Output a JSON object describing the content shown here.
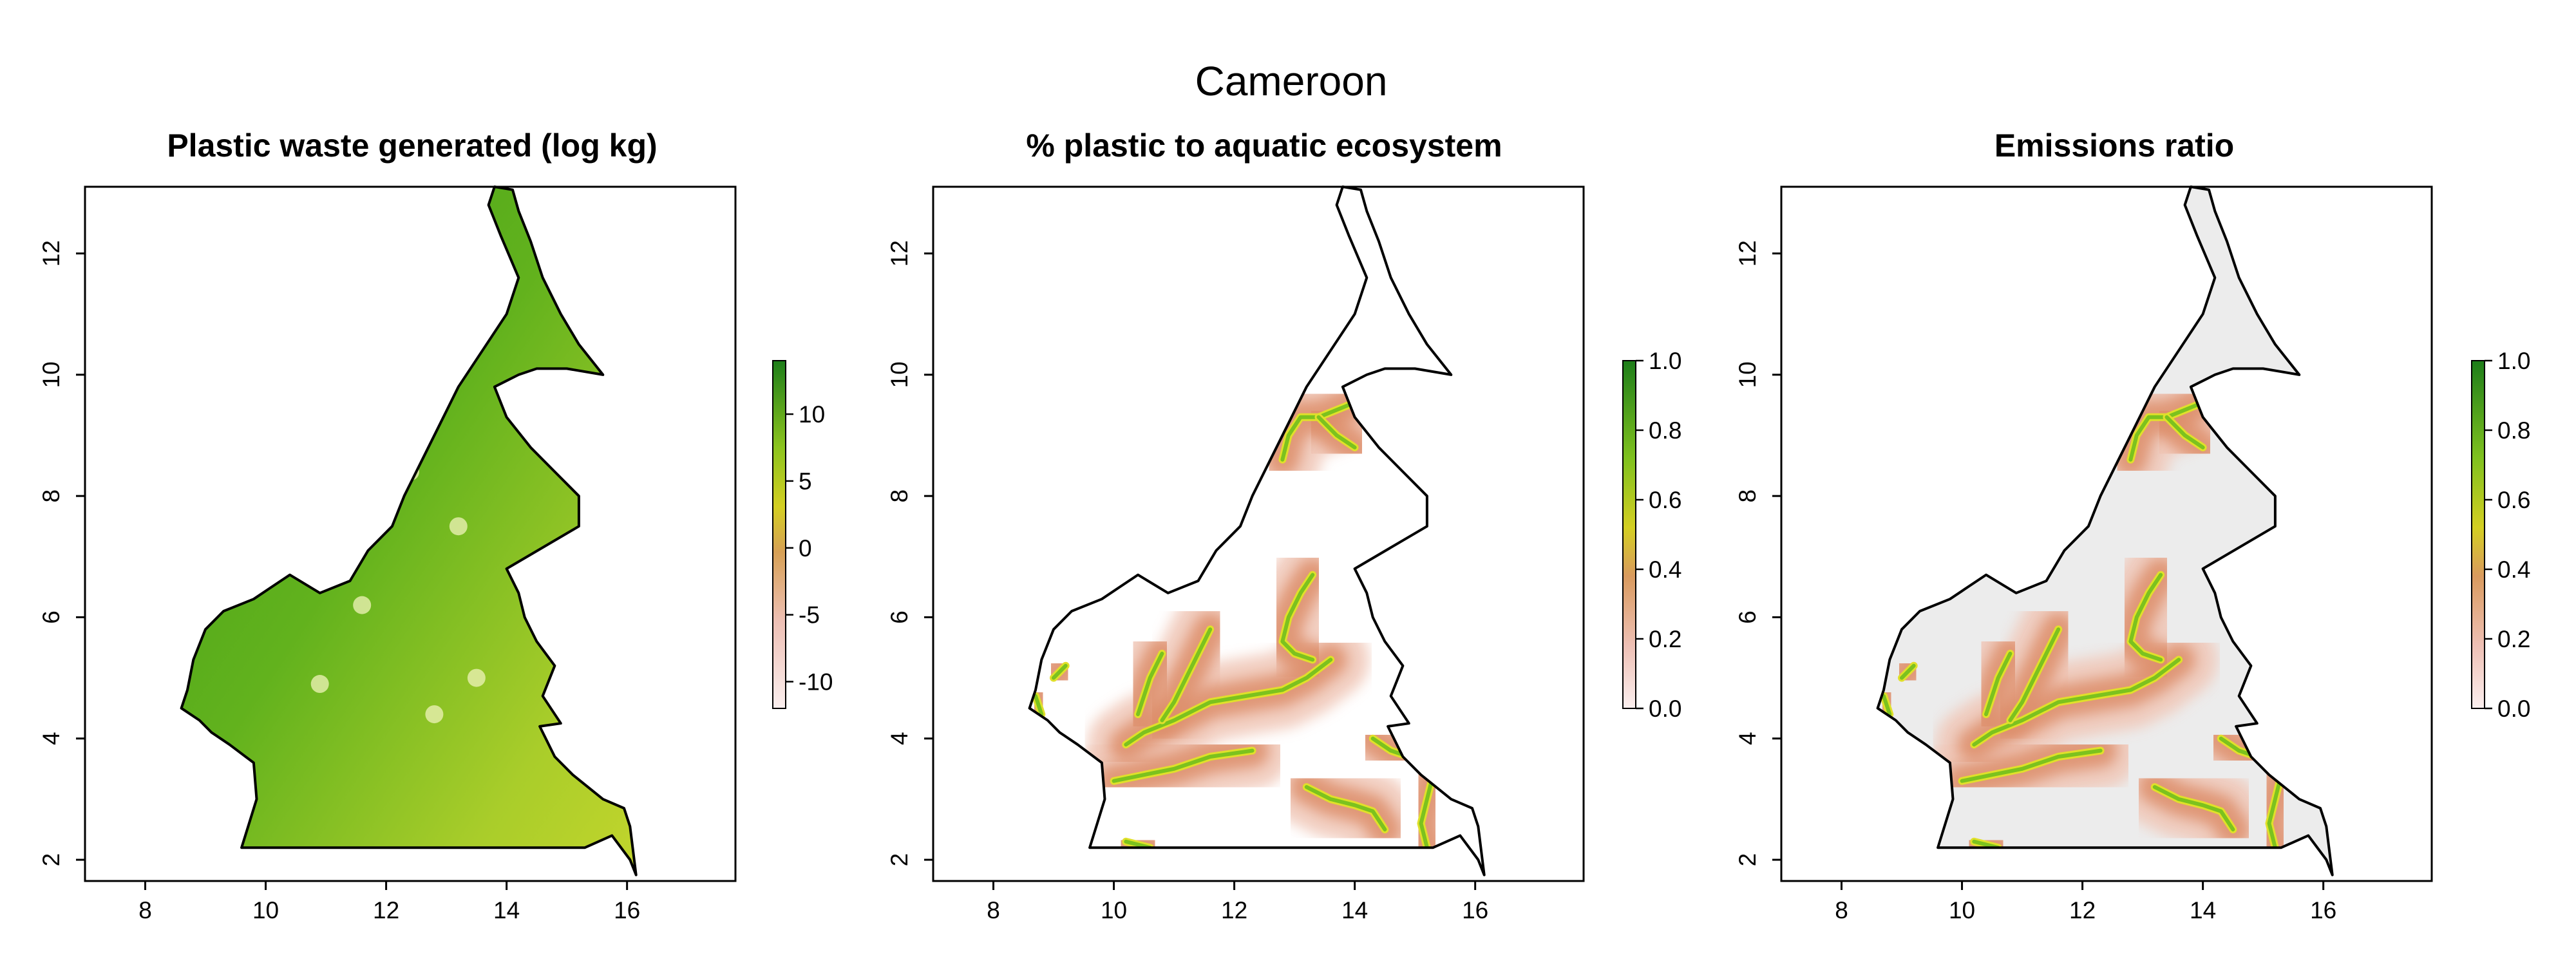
{
  "figure": {
    "title": "Cameroon",
    "colors": {
      "land_green_dark": "#3f9e1a",
      "land_green": "#62b21d",
      "land_yellowgreen": "#a9cd2a",
      "buffer_orange": "#dd8e6a",
      "buffer_pink": "#f0c7b8",
      "river_green": "#7cc21e",
      "river_yellow": "#e0e02a",
      "background_grey": "#ececec",
      "border": "#000000"
    }
  },
  "panels": [
    {
      "title": "Plastic waste generated (log kg)",
      "x_ticks": [
        "8",
        "10",
        "12",
        "14",
        "16"
      ],
      "y_ticks": [
        "2",
        "4",
        "6",
        "8",
        "10",
        "12"
      ],
      "legend_ticks": [
        "10",
        "5",
        "0",
        "-5",
        "-10"
      ],
      "legend_range": [
        -12,
        14
      ]
    },
    {
      "title": "% plastic to aquatic ecosystem",
      "x_ticks": [
        "8",
        "10",
        "12",
        "14",
        "16"
      ],
      "y_ticks": [
        "2",
        "4",
        "6",
        "8",
        "10",
        "12"
      ],
      "legend_ticks": [
        "1.0",
        "0.8",
        "0.6",
        "0.4",
        "0.2",
        "0.0"
      ],
      "legend_range": [
        0,
        1
      ]
    },
    {
      "title": "Emissions ratio",
      "x_ticks": [
        "8",
        "10",
        "12",
        "14",
        "16"
      ],
      "y_ticks": [
        "2",
        "4",
        "6",
        "8",
        "10",
        "12"
      ],
      "legend_ticks": [
        "1.0",
        "0.8",
        "0.6",
        "0.4",
        "0.2",
        "0.0"
      ],
      "legend_range": [
        0,
        1
      ]
    }
  ],
  "map_extent": {
    "lon_range": [
      7,
      17.8
    ],
    "lat_range": [
      1.65,
      13.1
    ]
  },
  "country_outline": [
    [
      9.6,
      2.2
    ],
    [
      11.3,
      2.2
    ],
    [
      13.0,
      2.2
    ],
    [
      14.9,
      2.2
    ],
    [
      15.3,
      2.2
    ],
    [
      15.75,
      2.4
    ],
    [
      16.05,
      2.0
    ],
    [
      16.15,
      1.75
    ],
    [
      16.05,
      2.55
    ],
    [
      15.95,
      2.85
    ],
    [
      15.6,
      3.0
    ],
    [
      15.1,
      3.4
    ],
    [
      14.8,
      3.7
    ],
    [
      14.55,
      4.2
    ],
    [
      14.9,
      4.25
    ],
    [
      14.6,
      4.7
    ],
    [
      14.8,
      5.2
    ],
    [
      14.5,
      5.6
    ],
    [
      14.3,
      6.0
    ],
    [
      14.2,
      6.4
    ],
    [
      14.0,
      6.8
    ],
    [
      15.2,
      7.5
    ],
    [
      15.2,
      8.0
    ],
    [
      14.8,
      8.4
    ],
    [
      14.4,
      8.8
    ],
    [
      14.0,
      9.3
    ],
    [
      13.8,
      9.8
    ],
    [
      14.2,
      10.0
    ],
    [
      14.5,
      10.1
    ],
    [
      15.0,
      10.1
    ],
    [
      15.6,
      10.0
    ],
    [
      15.2,
      10.5
    ],
    [
      14.9,
      11.0
    ],
    [
      14.6,
      11.6
    ],
    [
      14.4,
      12.2
    ],
    [
      14.2,
      12.7
    ],
    [
      14.1,
      13.05
    ],
    [
      13.8,
      13.1
    ],
    [
      13.7,
      12.8
    ],
    [
      13.9,
      12.3
    ],
    [
      14.2,
      11.6
    ],
    [
      14.0,
      11.0
    ],
    [
      13.6,
      10.4
    ],
    [
      13.2,
      9.8
    ],
    [
      12.9,
      9.2
    ],
    [
      12.6,
      8.6
    ],
    [
      12.3,
      8.0
    ],
    [
      12.1,
      7.5
    ],
    [
      11.7,
      7.1
    ],
    [
      11.4,
      6.6
    ],
    [
      10.9,
      6.4
    ],
    [
      10.4,
      6.7
    ],
    [
      10.1,
      6.5
    ],
    [
      9.8,
      6.3
    ],
    [
      9.3,
      6.1
    ],
    [
      9.0,
      5.8
    ],
    [
      8.8,
      5.3
    ],
    [
      8.7,
      4.8
    ],
    [
      8.6,
      4.5
    ],
    [
      8.9,
      4.3
    ],
    [
      9.1,
      4.1
    ],
    [
      9.4,
      3.9
    ],
    [
      9.8,
      3.6
    ],
    [
      9.85,
      3.0
    ],
    [
      9.6,
      2.2
    ]
  ],
  "rivers": [
    [
      [
        13.9,
        9.5
      ],
      [
        13.4,
        9.3
      ],
      [
        13.1,
        9.3
      ],
      [
        12.9,
        9.0
      ],
      [
        12.8,
        8.6
      ]
    ],
    [
      [
        13.4,
        9.3
      ],
      [
        13.7,
        9.0
      ],
      [
        14.0,
        8.8
      ]
    ],
    [
      [
        13.3,
        6.7
      ],
      [
        13.1,
        6.4
      ],
      [
        12.9,
        6.0
      ],
      [
        12.8,
        5.6
      ],
      [
        13.0,
        5.4
      ],
      [
        13.3,
        5.3
      ]
    ],
    [
      [
        13.6,
        5.3
      ],
      [
        13.2,
        5.0
      ],
      [
        12.8,
        4.8
      ],
      [
        12.2,
        4.7
      ],
      [
        11.6,
        4.6
      ],
      [
        11.0,
        4.3
      ],
      [
        10.5,
        4.1
      ],
      [
        10.2,
        3.9
      ]
    ],
    [
      [
        11.6,
        5.8
      ],
      [
        11.4,
        5.4
      ],
      [
        11.2,
        5.0
      ],
      [
        11.0,
        4.6
      ],
      [
        10.8,
        4.3
      ]
    ],
    [
      [
        10.8,
        5.4
      ],
      [
        10.6,
        5.0
      ],
      [
        10.4,
        4.4
      ]
    ],
    [
      [
        12.3,
        3.8
      ],
      [
        11.6,
        3.7
      ],
      [
        11.0,
        3.5
      ],
      [
        10.5,
        3.4
      ],
      [
        10.0,
        3.3
      ]
    ],
    [
      [
        13.2,
        3.2
      ],
      [
        13.6,
        3.0
      ],
      [
        14.0,
        2.9
      ],
      [
        14.3,
        2.8
      ],
      [
        14.5,
        2.5
      ]
    ],
    [
      [
        14.3,
        4.0
      ],
      [
        14.6,
        3.8
      ],
      [
        14.9,
        3.7
      ]
    ],
    [
      [
        15.3,
        3.4
      ],
      [
        15.2,
        3.0
      ],
      [
        15.1,
        2.6
      ],
      [
        15.2,
        2.2
      ]
    ],
    [
      [
        9.2,
        5.2
      ],
      [
        9.0,
        5.0
      ]
    ],
    [
      [
        10.2,
        2.3
      ],
      [
        10.6,
        2.2
      ]
    ],
    [
      [
        8.8,
        4.4
      ],
      [
        8.7,
        4.7
      ]
    ]
  ]
}
